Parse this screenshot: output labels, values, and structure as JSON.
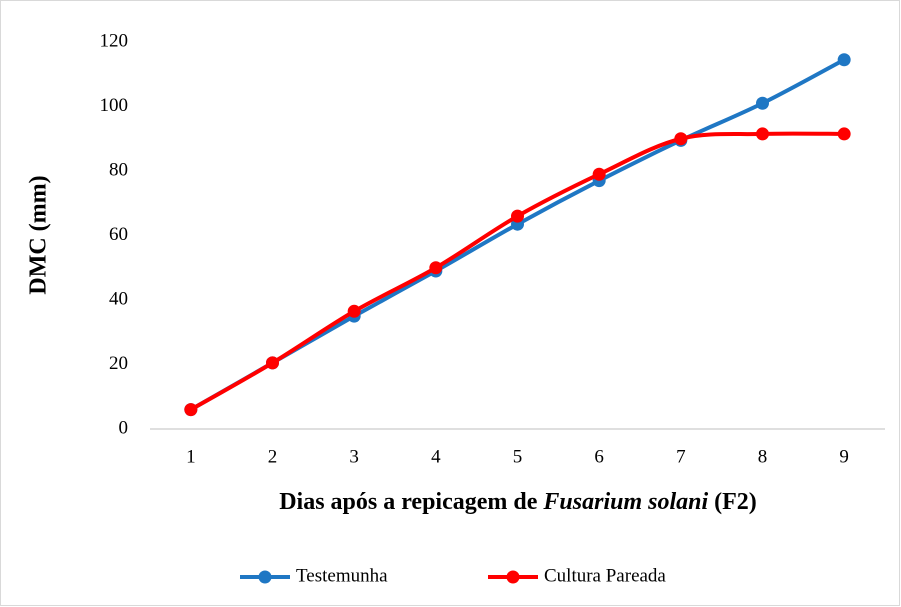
{
  "chart_data": {
    "type": "line",
    "ylabel": "DMC (mm)",
    "xlabel": [
      "Dias após a repicagem de ",
      "Fusarium  solani",
      " (F2)"
    ],
    "categories": [
      "1",
      "2",
      "3",
      "4",
      "5",
      "6",
      "7",
      "8",
      "9"
    ],
    "series": [
      {
        "name": "Testemunha",
        "color": "#1f77c4",
        "values": [
          6,
          20.5,
          35,
          49,
          63.5,
          77,
          89.5,
          101,
          114.5
        ]
      },
      {
        "name": "Cultura Pareada",
        "color": "#ff0000",
        "values": [
          6,
          20.5,
          36.5,
          50,
          66,
          79,
          90,
          91.5,
          91.5
        ]
      }
    ],
    "ylim": [
      0,
      120
    ],
    "yticks": [
      0,
      20,
      40,
      60,
      80,
      100,
      120
    ],
    "grid": false,
    "legend": "bottom"
  }
}
